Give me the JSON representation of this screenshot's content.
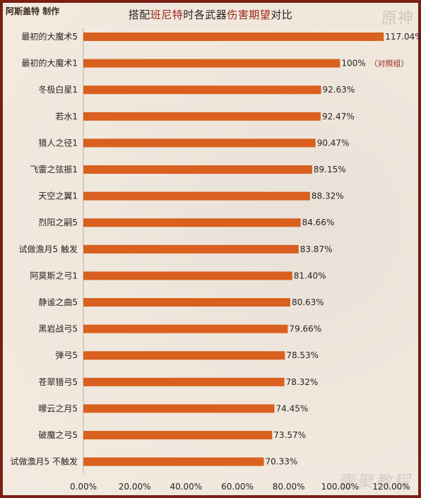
{
  "header": {
    "author": "阿斯盖特 制作",
    "title_pre": "搭配",
    "title_char": "班尼特",
    "title_mid": "时各武器",
    "title_metric": "伤害期望",
    "title_post": "对比",
    "logo": "原神",
    "watermark": "壹聚教程"
  },
  "colors": {
    "bar": "#d9601f",
    "accent": "#9a2516",
    "border": "#7a1f12",
    "text": "#2a2320"
  },
  "chart_data": {
    "type": "bar",
    "orientation": "horizontal",
    "categories": [
      "最初的大魔术5",
      "最初的大魔术1",
      "冬极白星1",
      "若水1",
      "猎人之径1",
      "飞雷之弦振1",
      "天空之翼1",
      "烈阳之嗣5",
      "试做澹月5 触发",
      "阿莫斯之弓1",
      "静谧之曲5",
      "黑岩战弓5",
      "弹弓5",
      "苍翠猎弓5",
      "曚云之月5",
      "破魔之弓5",
      "试做澹月5 不触发"
    ],
    "values": [
      117.04,
      100,
      92.63,
      92.47,
      90.47,
      89.15,
      88.32,
      84.66,
      83.87,
      81.4,
      80.63,
      79.66,
      78.53,
      78.32,
      74.45,
      73.57,
      70.33
    ],
    "value_labels": [
      "117.04%",
      "100%",
      "92.63%",
      "92.47%",
      "90.47%",
      "89.15%",
      "88.32%",
      "84.66%",
      "83.87%",
      "81.40%",
      "80.63%",
      "79.66%",
      "78.53%",
      "78.32%",
      "74.45%",
      "73.57%",
      "70.33%"
    ],
    "annotations": [
      {
        "category": "最初的大魔术1",
        "text": "（对照组）"
      }
    ],
    "xticks": [
      "0.00%",
      "20.00%",
      "40.00%",
      "60.00%",
      "80.00%",
      "100.00%",
      "120.00%"
    ],
    "xlim": [
      0,
      120
    ],
    "grid": false,
    "legend": "none"
  }
}
